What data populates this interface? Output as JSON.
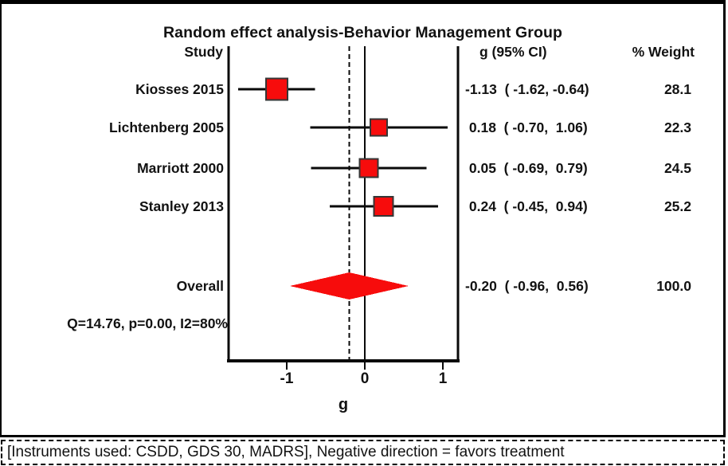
{
  "figure": {
    "title": "Random effect analysis-Behavior Management Group",
    "columns": {
      "study": "Study",
      "effect": "g (95% CI)",
      "weight": "% Weight"
    },
    "heterogeneity": "Q=14.76, p=0.00, I2=80%",
    "caption": "[Instruments used: CSDD, GDS 30, MADRS], Negative direction = favors treatment",
    "colors": {
      "marker_fill": "#f70c0c",
      "marker_border": "#363636",
      "line": "#0a0a0a"
    }
  },
  "chart_data": {
    "type": "forest",
    "title": "Random effect analysis-Behavior Management Group",
    "xlabel": "g",
    "x_ticks": [
      -1,
      0,
      1
    ],
    "x_range_plotted": [
      -1.74,
      1.19
    ],
    "null_line": 0,
    "overall_dashed_line": -0.2,
    "studies": [
      {
        "label": "Kiosses 2015",
        "g": -1.13,
        "ci_low": -1.62,
        "ci_high": -0.64,
        "weight": 28.1,
        "effect_text": "-1.13  ( -1.62, -0.64)",
        "weight_text": "28.1"
      },
      {
        "label": "Lichtenberg 2005",
        "g": 0.18,
        "ci_low": -0.7,
        "ci_high": 1.06,
        "weight": 22.3,
        "effect_text": " 0.18  ( -0.70,  1.06)",
        "weight_text": "22.3"
      },
      {
        "label": "Marriott 2000",
        "g": 0.05,
        "ci_low": -0.69,
        "ci_high": 0.79,
        "weight": 24.5,
        "effect_text": " 0.05  ( -0.69,  0.79)",
        "weight_text": "24.5"
      },
      {
        "label": "Stanley 2013",
        "g": 0.24,
        "ci_low": -0.45,
        "ci_high": 0.94,
        "weight": 25.2,
        "effect_text": " 0.24  ( -0.45,  0.94)",
        "weight_text": "25.2"
      }
    ],
    "overall": {
      "label": "Overall",
      "g": -0.2,
      "ci_low": -0.96,
      "ci_high": 0.56,
      "weight": 100.0,
      "effect_text": "-0.20  ( -0.96,  0.56)",
      "weight_text": "100.0"
    },
    "heterogeneity": "Q=14.76, p=0.00, I2=80%"
  }
}
